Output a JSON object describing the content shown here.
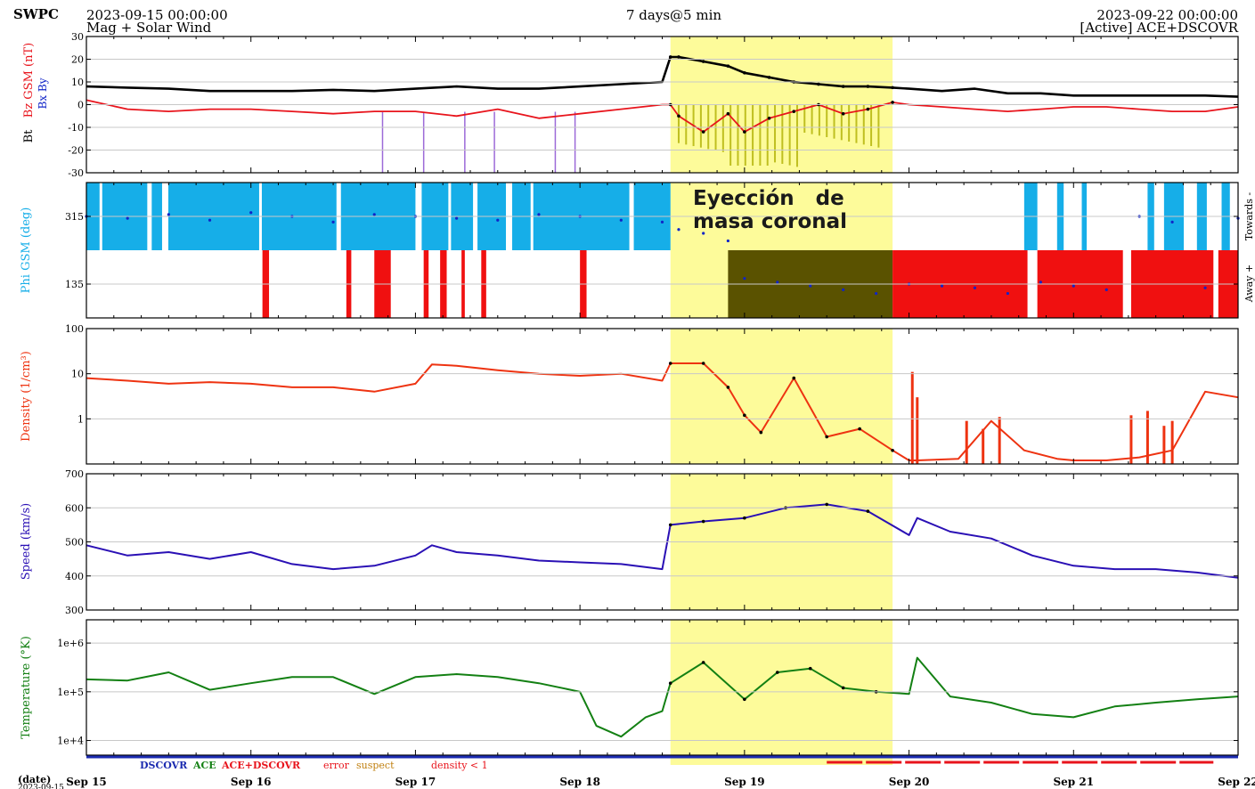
{
  "header": {
    "org": "SWPC",
    "start_time": "2023-09-15 00:00:00",
    "product": "Mag + Solar Wind",
    "span": "7 days@5 min",
    "end_time": "2023-09-22 00:00:00",
    "source": "[Active] ACE+DSCOVR"
  },
  "annotation": {
    "line1": "Eyección   de",
    "line2": "masa coronal",
    "highlight_color": "#fdfb9a"
  },
  "colors": {
    "bz": "#e8141c",
    "bt": "#000000",
    "phi_toward": "#16aee8",
    "phi_away": "#f01010",
    "density": "#ee3311",
    "speed": "#2a10b5",
    "temperature": "#138013",
    "by": "#1024c8",
    "dark_in_highlight": "#3a3a00"
  },
  "legend": [
    {
      "label": "DSCOVR",
      "color": "#1b2bb0"
    },
    {
      "label": "ACE",
      "color": "#138013"
    },
    {
      "label": "ACE+DSCOVR",
      "color": "#e8141c"
    },
    {
      "label": "error",
      "color": "#e8141c"
    },
    {
      "label": "suspect",
      "color": "#c08010"
    },
    {
      "label": "density < 1",
      "color": "#e8141c"
    }
  ],
  "x_axis": {
    "corner_label": "(date)",
    "corner_sub": "2023-09-15",
    "tick_labels": [
      "Sep 15",
      "Sep 16",
      "Sep 17",
      "Sep 18",
      "Sep 19",
      "Sep 20",
      "Sep 21",
      "Sep 22"
    ]
  },
  "chart_data": [
    {
      "type": "line",
      "panel": "magnetic field",
      "ylabel_parts": [
        "Bt",
        "Bz GSM (nT)"
      ],
      "by_bx_label": "Bx By",
      "ylim": [
        -30,
        30
      ],
      "ytick_labels": [
        "30",
        "20",
        "10",
        "0",
        "-10",
        "-20",
        "-30"
      ],
      "x_days": [
        0,
        0.25,
        0.5,
        0.75,
        1,
        1.25,
        1.5,
        1.75,
        2,
        2.25,
        2.5,
        2.75,
        3,
        3.25,
        3.5,
        3.55,
        3.6,
        3.75,
        3.9,
        4,
        4.15,
        4.3,
        4.45,
        4.6,
        4.75,
        4.9,
        5,
        5.2,
        5.4,
        5.6,
        5.8,
        6,
        6.2,
        6.4,
        6.6,
        6.8,
        7
      ],
      "series": [
        {
          "name": "Bt",
          "values": [
            8,
            7.5,
            7,
            6,
            6,
            6,
            6.5,
            6,
            7,
            8,
            7,
            7,
            8,
            9,
            10,
            21,
            21,
            19,
            17,
            14,
            12,
            10,
            9,
            8,
            8,
            7.5,
            7,
            6,
            7,
            5,
            5,
            4,
            4,
            4,
            4,
            4,
            3.5
          ]
        },
        {
          "name": "Bz",
          "values": [
            2,
            -2,
            -3,
            -2,
            -2,
            -3,
            -4,
            -3,
            -3,
            -5,
            -2,
            -6,
            -4,
            -2,
            0,
            0,
            -5,
            -12,
            -4,
            -12,
            -6,
            -3,
            0,
            -4,
            -2,
            1,
            0,
            -1,
            -2,
            -3,
            -2,
            -1,
            -1,
            -2,
            -3,
            -3,
            -1
          ]
        }
      ],
      "grid": true
    },
    {
      "type": "scatter",
      "panel": "phi angle",
      "ylabel": "Phi GSM (deg)",
      "right_labels": [
        "Towards -",
        "Away +"
      ],
      "ylim": [
        45,
        405
      ],
      "ytick_labels": [
        "315",
        "135"
      ],
      "x_days": [
        0,
        0.25,
        0.5,
        0.75,
        1,
        1.25,
        1.5,
        1.75,
        2,
        2.25,
        2.5,
        2.75,
        3,
        3.25,
        3.5,
        3.6,
        3.75,
        3.9,
        4,
        4.2,
        4.4,
        4.6,
        4.8,
        5,
        5.2,
        5.4,
        5.6,
        5.8,
        6,
        6.2,
        6.4,
        6.6,
        6.8,
        7
      ],
      "values": [
        315,
        310,
        320,
        305,
        325,
        315,
        300,
        320,
        315,
        310,
        305,
        320,
        315,
        305,
        300,
        280,
        270,
        250,
        150,
        140,
        130,
        120,
        110,
        135,
        130,
        125,
        110,
        140,
        130,
        120,
        315,
        300,
        125,
        310
      ],
      "grid": true
    },
    {
      "type": "line",
      "panel": "density",
      "ylabel": "Density (1/cm³)",
      "log_scale": true,
      "ylim": [
        0.1,
        100
      ],
      "ytick_labels": [
        "100",
        "10",
        "1"
      ],
      "x_days": [
        0,
        0.25,
        0.5,
        0.75,
        1,
        1.25,
        1.5,
        1.75,
        2,
        2.1,
        2.25,
        2.5,
        2.75,
        3,
        3.25,
        3.5,
        3.55,
        3.75,
        3.9,
        4,
        4.1,
        4.3,
        4.5,
        4.7,
        4.9,
        5,
        5.05,
        5.3,
        5.5,
        5.7,
        5.9,
        6,
        6.2,
        6.4,
        6.6,
        6.8,
        7
      ],
      "values": [
        8,
        7,
        6,
        6.5,
        6,
        5,
        5,
        4,
        6,
        16,
        15,
        12,
        10,
        9,
        10,
        7,
        17,
        17,
        5,
        1.2,
        0.5,
        8,
        0.4,
        0.6,
        0.2,
        0.12,
        0.12,
        0.13,
        0.9,
        0.2,
        0.13,
        0.12,
        0.12,
        0.14,
        0.2,
        4,
        3
      ],
      "grid": true
    },
    {
      "type": "line",
      "panel": "speed",
      "ylabel": "Speed (km/s)",
      "ylim": [
        300,
        700
      ],
      "ytick_labels": [
        "700",
        "600",
        "500",
        "400",
        "300"
      ],
      "x_days": [
        0,
        0.25,
        0.5,
        0.75,
        1,
        1.25,
        1.5,
        1.75,
        2,
        2.1,
        2.25,
        2.5,
        2.75,
        3,
        3.25,
        3.5,
        3.55,
        3.75,
        4,
        4.25,
        4.5,
        4.75,
        5,
        5.05,
        5.25,
        5.5,
        5.75,
        6,
        6.25,
        6.5,
        6.75,
        7
      ],
      "values": [
        490,
        460,
        470,
        450,
        470,
        435,
        420,
        430,
        460,
        490,
        470,
        460,
        445,
        440,
        435,
        420,
        550,
        560,
        570,
        600,
        610,
        590,
        520,
        570,
        530,
        510,
        460,
        430,
        420,
        420,
        410,
        395
      ],
      "grid": true
    },
    {
      "type": "line",
      "panel": "temperature",
      "ylabel": "Temperature (°K)",
      "log_scale": true,
      "ylim": [
        5000,
        3000000
      ],
      "ytick_labels": [
        "1e+6",
        "1e+5",
        "1e+4"
      ],
      "x_days": [
        0,
        0.25,
        0.5,
        0.75,
        1,
        1.25,
        1.5,
        1.75,
        2,
        2.25,
        2.5,
        2.75,
        3,
        3.1,
        3.25,
        3.4,
        3.5,
        3.55,
        3.75,
        4,
        4.2,
        4.4,
        4.6,
        4.8,
        5,
        5.05,
        5.25,
        5.5,
        5.75,
        6,
        6.25,
        6.5,
        6.75,
        7
      ],
      "values": [
        180000,
        170000,
        250000,
        110000,
        150000,
        200000,
        200000,
        90000,
        200000,
        230000,
        200000,
        150000,
        100000,
        20000,
        12000,
        30000,
        40000,
        150000,
        400000,
        70000,
        250000,
        300000,
        120000,
        100000,
        90000,
        500000,
        80000,
        60000,
        35000,
        30000,
        50000,
        60000,
        70000,
        80000
      ],
      "grid": true
    }
  ]
}
